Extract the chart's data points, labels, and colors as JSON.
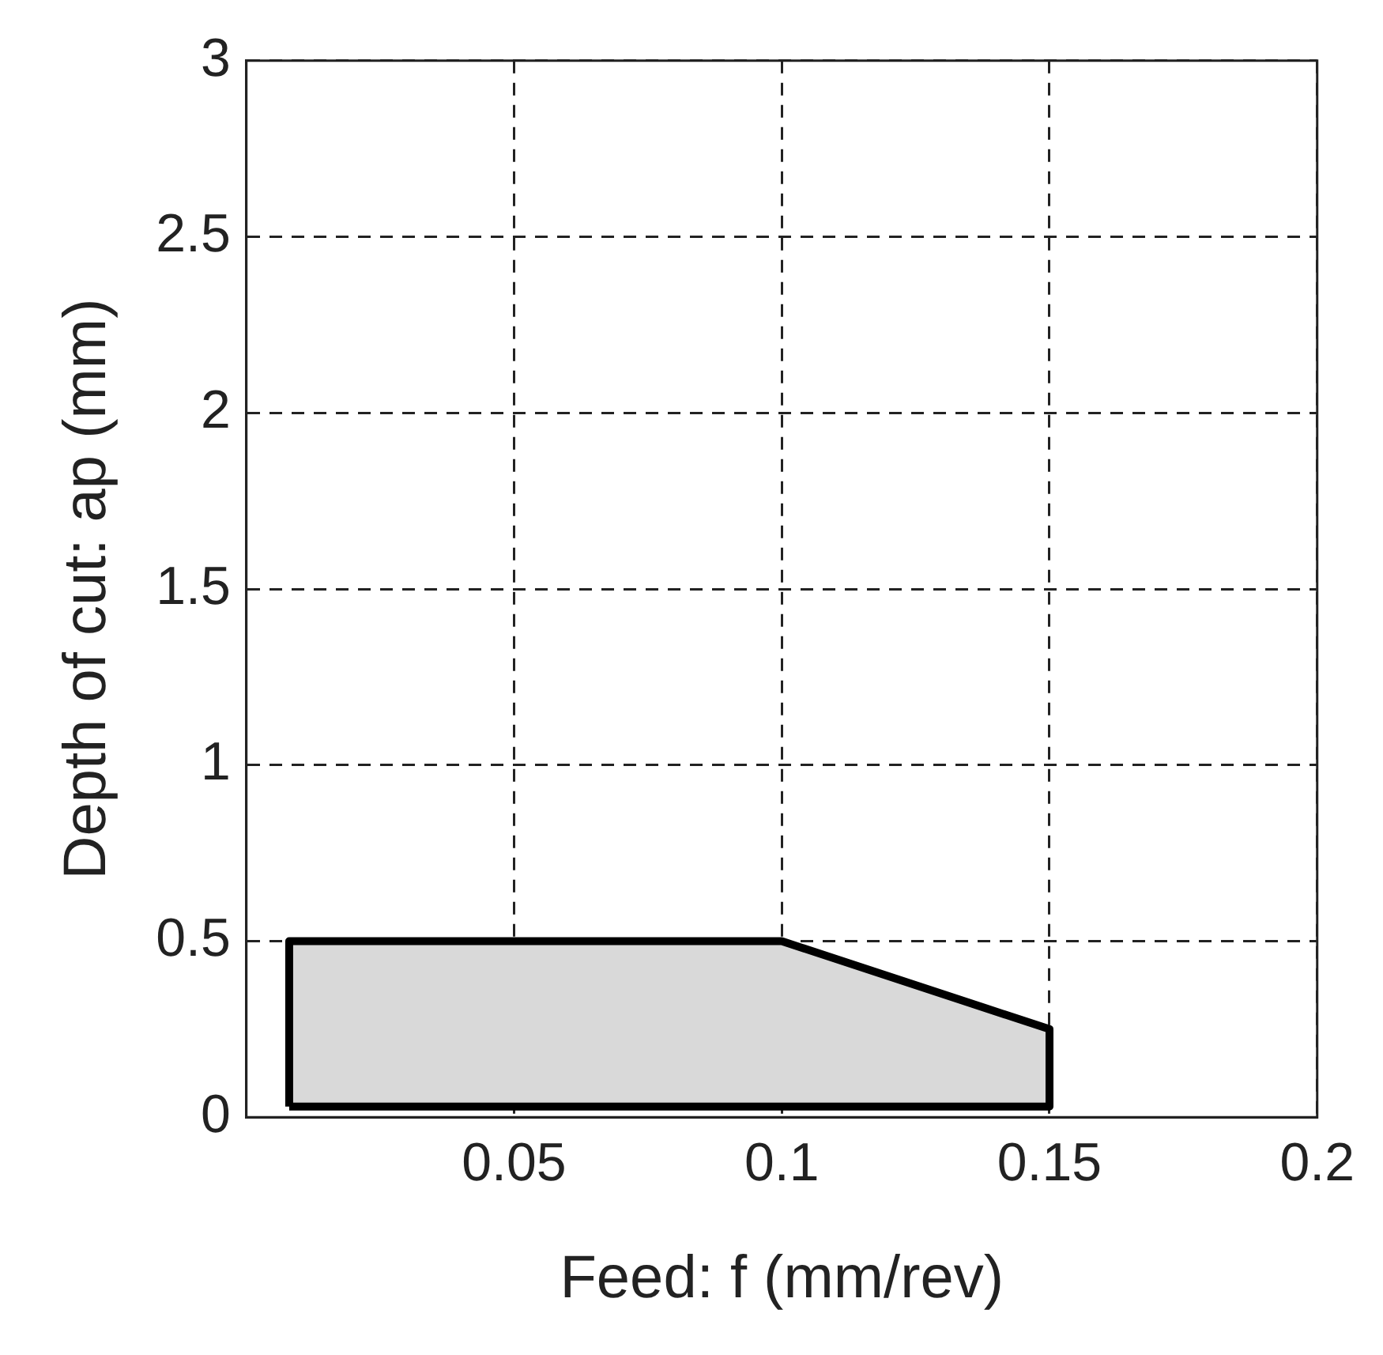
{
  "chart_data": {
    "type": "area",
    "xlabel": "Feed: f (mm/rev)",
    "ylabel": "Depth of cut: ap (mm)",
    "x": [
      0.008,
      0.008,
      0.1,
      0.15,
      0.15,
      0.008
    ],
    "series": [
      {
        "color": "#d9d9d9",
        "values": [
          0.03,
          0.5,
          0.5,
          0.25,
          0.03,
          0.03
        ]
      }
    ],
    "xlim": [
      0,
      0.2
    ],
    "xticks": [
      0.05,
      0.1,
      0.15,
      0.2
    ],
    "ylim": [
      0,
      3
    ],
    "yticks": [
      0,
      0.5,
      1,
      1.5,
      2,
      2.5,
      3
    ],
    "grid": true,
    "legend": false
  }
}
